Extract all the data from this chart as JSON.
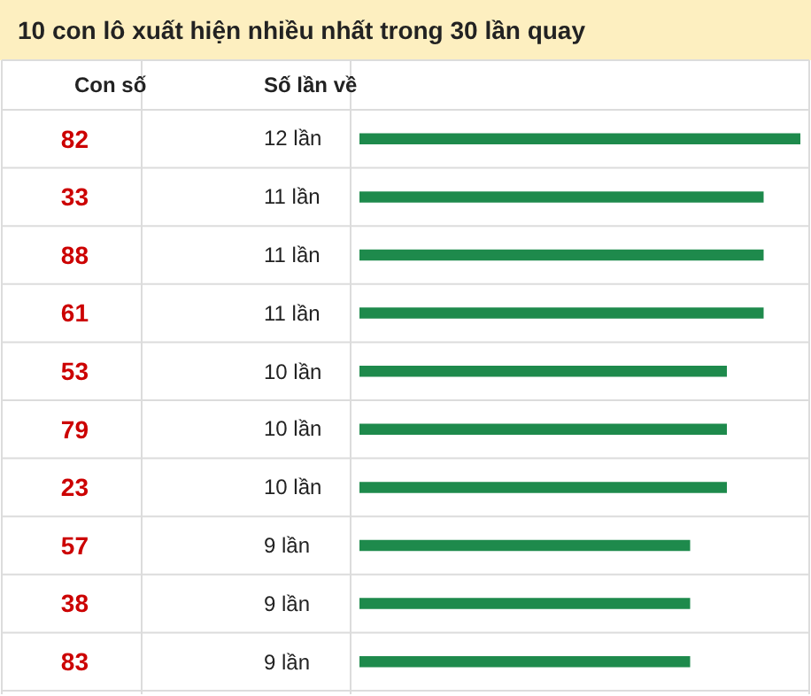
{
  "chart_data": {
    "type": "bar",
    "orientation": "horizontal",
    "title": "10 con lô xuất hiện nhiều nhất trong 30 lần quay",
    "annotations": [
      "Con số",
      "Số lần về"
    ],
    "categories": [
      "82",
      "33",
      "88",
      "61",
      "53",
      "79",
      "23",
      "57",
      "38",
      "83"
    ],
    "values": [
      12,
      11,
      11,
      11,
      10,
      10,
      10,
      9,
      9,
      9
    ],
    "value_labels": [
      "12 lần",
      "11 lần",
      "11 lần",
      "11 lần",
      "10 lần",
      "10 lần",
      "10 lần",
      "9 lần",
      "9 lần",
      "9 lần"
    ],
    "color": "#1e8a4c",
    "xlim": [
      0,
      12
    ],
    "tick_labels": "y"
  }
}
